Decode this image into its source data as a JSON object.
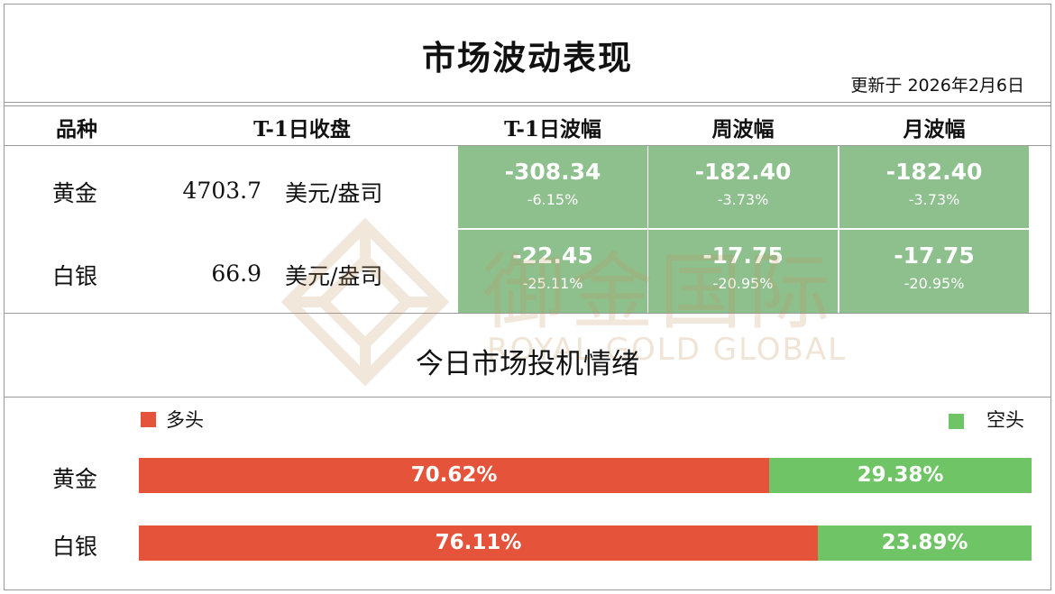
{
  "title": "市场波动表现",
  "updated": "更新于  2026年2月6日",
  "columns": [
    "品种",
    "T-1日收盘",
    "T-1日波幅",
    "周波幅",
    "月波幅"
  ],
  "rows": [
    {
      "name": "黄金",
      "close": "4703.7",
      "unit": "美元/盎司",
      "t1": {
        "value": "-308.34",
        "pct": "-6.15%"
      },
      "week": {
        "value": "-182.40",
        "pct": "-3.73%"
      },
      "month": {
        "value": "-182.40",
        "pct": "-3.73%"
      }
    },
    {
      "name": "白银",
      "close": "66.9",
      "unit": "美元/盎司",
      "t1": {
        "value": "-22.45",
        "pct": "-25.11%"
      },
      "week": {
        "value": "-17.75",
        "pct": "-20.95%"
      },
      "month": {
        "value": "-17.75",
        "pct": "-20.95%"
      }
    }
  ],
  "watermark": {
    "text": "御金国际",
    "sub": "ROYAL GOLD GLOBAL"
  },
  "sentiment": {
    "title": "今日市场投机情绪",
    "long_label": "多头",
    "short_label": "空头",
    "items": [
      {
        "name": "黄金",
        "long": 70.62,
        "short": 29.38,
        "long_text": "70.62%",
        "short_text": "29.38%"
      },
      {
        "name": "白银",
        "long": 76.11,
        "short": 23.89,
        "long_text": "76.11%",
        "short_text": "23.89%"
      }
    ]
  },
  "colors": {
    "long": "#e4533a",
    "short": "#6fc466",
    "down_cell": "#8dc08d",
    "watermark": "#c7955e"
  }
}
